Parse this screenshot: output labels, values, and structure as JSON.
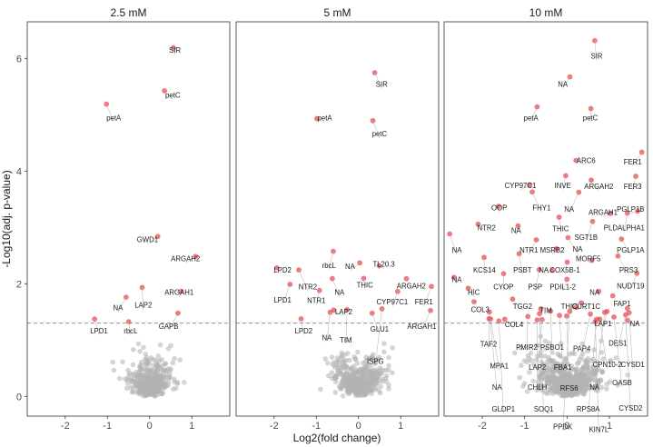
{
  "chart_data": {
    "type": "scatter",
    "xlabel": "Log2(fold change)",
    "ylabel": "-Log10(adj. p-value)",
    "xlim": [
      -2.9,
      1.9
    ],
    "ylim": [
      -0.35,
      6.65
    ],
    "xticks": [
      -2,
      -1,
      0,
      1
    ],
    "yticks": [
      0,
      2,
      4,
      6
    ],
    "threshold": 1.3,
    "colors": {
      "significant": "#e8474d",
      "background": "#b3b3b3",
      "threshold": "#808080"
    },
    "panels": [
      {
        "title": "2.5 mM",
        "labels": [
          {
            "text": "SIR",
            "x": 0.6,
            "y": 6.1
          },
          {
            "text": "petC",
            "x": 0.55,
            "y": 5.3
          },
          {
            "text": "petA",
            "x": -0.85,
            "y": 4.9
          },
          {
            "text": "GWD1",
            "x": -0.05,
            "y": 2.74
          },
          {
            "text": "ARGAH2",
            "x": 0.85,
            "y": 2.4
          },
          {
            "text": "ARGAH1",
            "x": 0.7,
            "y": 1.8
          },
          {
            "text": "LAP2",
            "x": -0.15,
            "y": 1.58
          },
          {
            "text": "NA",
            "x": -0.75,
            "y": 1.53
          },
          {
            "text": "LPD1",
            "x": -1.2,
            "y": 1.12
          },
          {
            "text": "rbcL",
            "x": -0.45,
            "y": 1.12
          },
          {
            "text": "GAPB",
            "x": 0.45,
            "y": 1.2
          }
        ]
      },
      {
        "title": "5 mM",
        "labels": [
          {
            "text": "SIR",
            "x": 0.55,
            "y": 5.5
          },
          {
            "text": "petA",
            "x": -0.8,
            "y": 4.9
          },
          {
            "text": "petC",
            "x": 0.5,
            "y": 4.62
          },
          {
            "text": "TL20.3",
            "x": 0.6,
            "y": 2.3
          },
          {
            "text": "rbcL",
            "x": -0.7,
            "y": 2.28
          },
          {
            "text": "NA",
            "x": -0.2,
            "y": 2.26
          },
          {
            "text": "LPD2",
            "x": -1.8,
            "y": 2.2
          },
          {
            "text": "THIC",
            "x": 0.15,
            "y": 1.93
          },
          {
            "text": "ARGAH2",
            "x": 1.25,
            "y": 1.92
          },
          {
            "text": "NTR2",
            "x": -1.2,
            "y": 1.9
          },
          {
            "text": "NA",
            "x": -0.45,
            "y": 1.8
          },
          {
            "text": "LPD1",
            "x": -1.8,
            "y": 1.67
          },
          {
            "text": "NTR1",
            "x": -1.0,
            "y": 1.66
          },
          {
            "text": "CYP97C1",
            "x": 0.8,
            "y": 1.63
          },
          {
            "text": "FER1",
            "x": 1.55,
            "y": 1.63
          },
          {
            "text": "LAP2",
            "x": -0.35,
            "y": 1.46
          },
          {
            "text": "LPD2",
            "x": -1.3,
            "y": 1.12
          },
          {
            "text": "NA",
            "x": -0.75,
            "y": 1.0
          },
          {
            "text": "TIM",
            "x": -0.3,
            "y": 0.96
          },
          {
            "text": "GLU1",
            "x": 0.5,
            "y": 1.15
          },
          {
            "text": "ARGAH1",
            "x": 1.5,
            "y": 1.2
          },
          {
            "text": "ISPG",
            "x": 0.4,
            "y": 0.58
          }
        ]
      },
      {
        "title": "10 mM",
        "labels": [
          {
            "text": "SIR",
            "x": 0.7,
            "y": 6.0
          },
          {
            "text": "NA",
            "x": -0.1,
            "y": 5.5
          },
          {
            "text": "petA",
            "x": -0.85,
            "y": 4.9
          },
          {
            "text": "petC",
            "x": 0.55,
            "y": 4.9
          },
          {
            "text": "ARC6",
            "x": 0.45,
            "y": 4.14
          },
          {
            "text": "FER1",
            "x": 1.55,
            "y": 4.12
          },
          {
            "text": "CYP97C1",
            "x": -1.1,
            "y": 3.7
          },
          {
            "text": "INVE",
            "x": -0.1,
            "y": 3.7
          },
          {
            "text": "ARGAH2",
            "x": 0.75,
            "y": 3.68
          },
          {
            "text": "FER3",
            "x": 1.55,
            "y": 3.68
          },
          {
            "text": "OOP",
            "x": -1.6,
            "y": 3.3
          },
          {
            "text": "FHY1",
            "x": -0.6,
            "y": 3.3
          },
          {
            "text": "NA",
            "x": 0.05,
            "y": 3.28
          },
          {
            "text": "ARGAH1",
            "x": 0.85,
            "y": 3.22
          },
          {
            "text": "PGLP1B",
            "x": 1.5,
            "y": 3.28
          },
          {
            "text": "NTR2",
            "x": -1.9,
            "y": 2.95
          },
          {
            "text": "NA",
            "x": -1.2,
            "y": 2.9
          },
          {
            "text": "THIC",
            "x": -0.15,
            "y": 2.93
          },
          {
            "text": "PLDALPHA1",
            "x": 1.35,
            "y": 2.95
          },
          {
            "text": "SGT1B",
            "x": 0.45,
            "y": 2.78
          },
          {
            "text": "NA",
            "x": -2.6,
            "y": 2.55
          },
          {
            "text": "NTR1",
            "x": -0.9,
            "y": 2.55
          },
          {
            "text": "MSRB2",
            "x": -0.35,
            "y": 2.55
          },
          {
            "text": "NA",
            "x": 0.25,
            "y": 2.57
          },
          {
            "text": "PGLP1A",
            "x": 1.5,
            "y": 2.55
          },
          {
            "text": "MORF5",
            "x": 0.5,
            "y": 2.4
          },
          {
            "text": "KCS14",
            "x": -1.95,
            "y": 2.2
          },
          {
            "text": "PSBT",
            "x": -1.05,
            "y": 2.2
          },
          {
            "text": "NA",
            "x": -0.55,
            "y": 2.2
          },
          {
            "text": "COX5B-1",
            "x": -0.05,
            "y": 2.2
          },
          {
            "text": "PRS3",
            "x": 1.45,
            "y": 2.2
          },
          {
            "text": "NA",
            "x": -2.6,
            "y": 2.03
          },
          {
            "text": "CYOP",
            "x": -1.5,
            "y": 1.9
          },
          {
            "text": "PSP",
            "x": -0.75,
            "y": 1.9
          },
          {
            "text": "PDIL1-2",
            "x": -0.1,
            "y": 1.9
          },
          {
            "text": "NUDT19",
            "x": 1.5,
            "y": 1.92
          },
          {
            "text": "HIC",
            "x": -2.2,
            "y": 1.8
          },
          {
            "text": "NA",
            "x": 0.65,
            "y": 1.8
          },
          {
            "text": "TGG2",
            "x": -1.05,
            "y": 1.55
          },
          {
            "text": "THIC",
            "x": 0.05,
            "y": 1.55
          },
          {
            "text": "CURT1C",
            "x": 0.45,
            "y": 1.55
          },
          {
            "text": "FAP1",
            "x": 1.3,
            "y": 1.6
          },
          {
            "text": "COL3",
            "x": -2.05,
            "y": 1.5
          },
          {
            "text": "TIM",
            "x": -0.5,
            "y": 1.48
          },
          {
            "text": "COL4",
            "x": -1.25,
            "y": 1.23
          },
          {
            "text": "LAP1",
            "x": 0.85,
            "y": 1.25
          },
          {
            "text": "NA",
            "x": 1.6,
            "y": 1.25
          },
          {
            "text": "TAF2",
            "x": -1.85,
            "y": 0.88
          },
          {
            "text": "PMIR2",
            "x": -0.95,
            "y": 0.83
          },
          {
            "text": "PSBO1",
            "x": -0.35,
            "y": 0.83
          },
          {
            "text": "PAP4",
            "x": 0.35,
            "y": 0.8
          },
          {
            "text": "DES1",
            "x": 1.2,
            "y": 0.9
          },
          {
            "text": "MPA1",
            "x": -1.6,
            "y": 0.5
          },
          {
            "text": "LAP2",
            "x": -0.7,
            "y": 0.47
          },
          {
            "text": "FBA1",
            "x": -0.1,
            "y": 0.47
          },
          {
            "text": "CPN10-2",
            "x": 0.95,
            "y": 0.52
          },
          {
            "text": "CYSD1",
            "x": 1.55,
            "y": 0.52
          },
          {
            "text": "NA",
            "x": -1.65,
            "y": 0.12
          },
          {
            "text": "CHLH",
            "x": -0.7,
            "y": 0.12
          },
          {
            "text": "RFS6",
            "x": 0.05,
            "y": 0.1
          },
          {
            "text": "NA",
            "x": 0.65,
            "y": 0.12
          },
          {
            "text": "OASB",
            "x": 1.3,
            "y": 0.2
          },
          {
            "text": "GLDP1",
            "x": -1.5,
            "y": -0.27
          },
          {
            "text": "SOQ1",
            "x": -0.55,
            "y": -0.27
          },
          {
            "text": "RPS8A",
            "x": 0.5,
            "y": -0.27
          },
          {
            "text": "CYSD2",
            "x": 1.5,
            "y": -0.25
          },
          {
            "text": "PPDK",
            "x": -0.1,
            "y": -0.58
          },
          {
            "text": "KIN7L",
            "x": 0.75,
            "y": -0.63
          }
        ]
      }
    ]
  }
}
